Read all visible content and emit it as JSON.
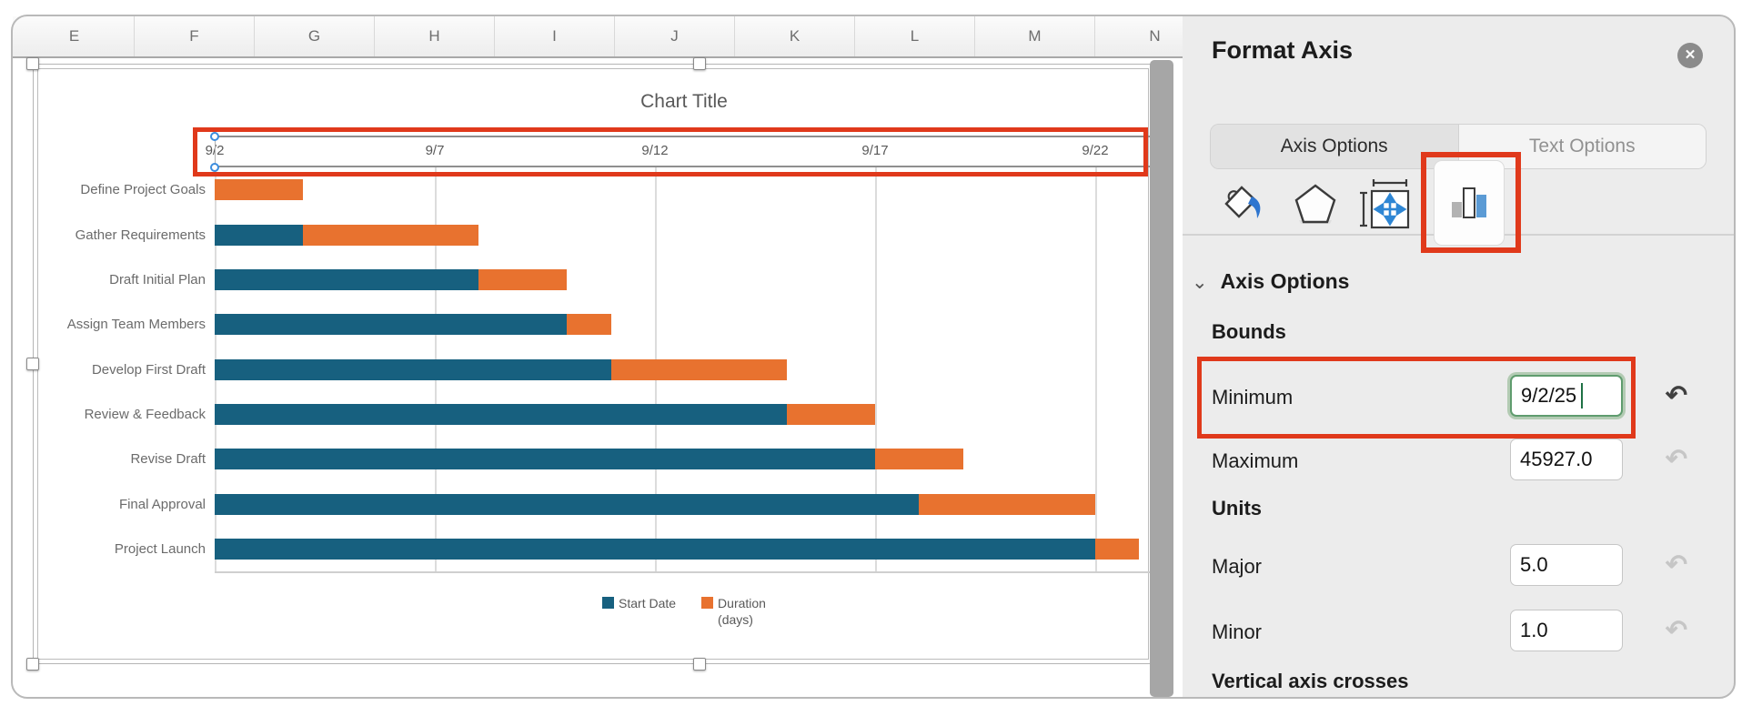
{
  "spreadsheet": {
    "column_headers": [
      "E",
      "F",
      "G",
      "H",
      "I",
      "J",
      "K",
      "L",
      "M",
      "N"
    ]
  },
  "chart_data": {
    "type": "bar",
    "orientation": "horizontal",
    "stacked": true,
    "title": "Chart Title",
    "categories": [
      "Define Project Goals",
      "Gather Requirements",
      "Draft Initial Plan",
      "Assign Team Members",
      "Develop First Draft",
      "Review & Feedback",
      "Revise Draft",
      "Final Approval",
      "Project Launch"
    ],
    "series": [
      {
        "name": "Start Date",
        "color": "#17607F",
        "start_dates": [
          "9/2",
          "9/4",
          "9/8",
          "9/10",
          "9/11",
          "9/15",
          "9/17",
          "9/18",
          "9/22"
        ],
        "values": [
          0,
          2,
          6,
          8,
          9,
          13,
          15,
          16,
          20
        ]
      },
      {
        "name": "Duration (days)",
        "legend_lines": [
          "Duration",
          "(days)"
        ],
        "color": "#E8722F",
        "values": [
          2,
          4,
          2,
          1,
          4,
          2,
          2,
          4,
          1
        ]
      }
    ],
    "x_axis": {
      "position": "top",
      "tick_labels": [
        "9/2",
        "9/7",
        "9/12",
        "9/17",
        "9/22"
      ],
      "min_day": 2,
      "major_unit_days": 5,
      "visible_max_day": 23.3
    },
    "legend_position": "bottom",
    "grid": true
  },
  "panel": {
    "title": "Format Axis",
    "close_glyph": "✕",
    "tabs": [
      {
        "label": "Axis Options",
        "active": true
      },
      {
        "label": "Text Options",
        "active": false
      }
    ],
    "icons": [
      "fill-icon",
      "effects-icon",
      "size-properties-icon",
      "chart-options-icon"
    ],
    "section_chevron": "⌄",
    "section_label": "Axis Options",
    "undo_glyph": "↷",
    "bounds": {
      "heading": "Bounds",
      "minimum_label": "Minimum",
      "minimum_value": "9/2/25",
      "maximum_label": "Maximum",
      "maximum_value": "45927.0"
    },
    "units": {
      "heading": "Units",
      "major_label": "Major",
      "major_value": "5.0",
      "minor_label": "Minor",
      "minor_value": "1.0"
    },
    "vertical_axis_heading": "Vertical axis crosses"
  }
}
